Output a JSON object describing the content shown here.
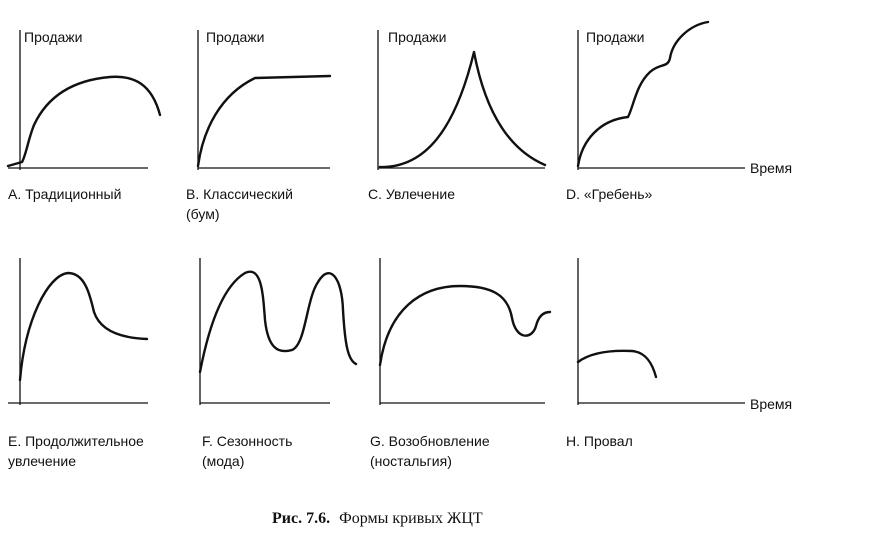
{
  "figure": {
    "axis_y_label": "Продажи",
    "axis_x_label": "Время",
    "caption_number": "Рис. 7.6.",
    "caption_text": "Формы кривых ЖЦТ"
  },
  "panels": [
    {
      "id": "A",
      "line1": "А. Традиционный",
      "line2": ""
    },
    {
      "id": "B",
      "line1": "В. Классический",
      "line2": "(бум)"
    },
    {
      "id": "C",
      "line1": "С. Увлечение",
      "line2": ""
    },
    {
      "id": "D",
      "line1": "D. «Гребень»",
      "line2": ""
    },
    {
      "id": "E",
      "line1": "Е. Продолжительное",
      "line2": "увлечение"
    },
    {
      "id": "F",
      "line1": "F. Сезонность",
      "line2": "(мода)"
    },
    {
      "id": "G",
      "line1": "G. Возобновление",
      "line2": "(ностальгия)"
    },
    {
      "id": "H",
      "line1": "Н. Провал",
      "line2": ""
    }
  ]
}
